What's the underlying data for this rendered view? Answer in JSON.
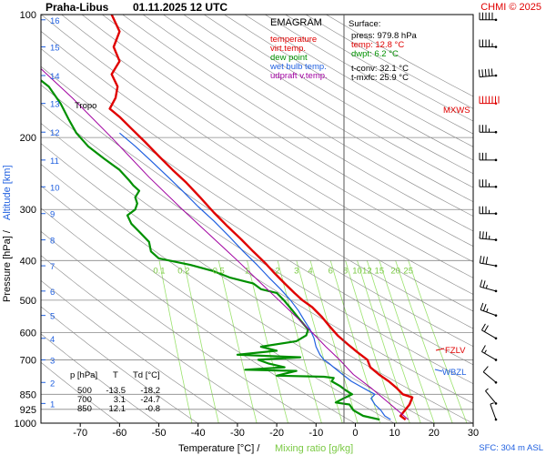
{
  "header": {
    "station": "Praha-Libus",
    "datetime": "01.11.2025 12 UTC",
    "copyright": "CHMI © 2025"
  },
  "legend": {
    "title": "EMAGRAM",
    "items": [
      {
        "label": "temperature",
        "color": "#e00000"
      },
      {
        "label": "virt.temp.",
        "color": "#e00000"
      },
      {
        "label": "dew point",
        "color": "#009000"
      },
      {
        "label": "wet bulb temp.",
        "color": "#2060e0"
      },
      {
        "label": "udpraft v.temp.",
        "color": "#a000a0"
      }
    ]
  },
  "surface": {
    "title": "Surface:",
    "press": "press: 979.8 hPa",
    "temp": "temp: 12.8 °C",
    "dwpt": "dwpt: 6.2 °C",
    "tconv": "t-conv: 32.1 °C",
    "tmxfc": "t-mxfc: 25.9 °C"
  },
  "levels_table": {
    "headers": [
      "p [hPa]",
      "T",
      "Td [°C]"
    ],
    "rows": [
      [
        "500",
        "-13.5",
        "-18.2"
      ],
      [
        "700",
        "3.1",
        "-24.7"
      ],
      [
        "850",
        "12.1",
        "-0.8"
      ]
    ]
  },
  "annotations": {
    "tropo": "Tropo",
    "mxws": "MXWS",
    "fzlv": "FZLV",
    "wbzl": "WBZL",
    "sfc": "SFC: 304 m ASL"
  },
  "axis_labels": {
    "y": "Pressure [hPa]  /",
    "y_alt": "Altitude [km]",
    "x": "Temperature [°C]  /",
    "x_mix": "Mixing ratio [g/kg]"
  },
  "chart_data": {
    "type": "line",
    "title": "Praha-Libus 01.11.2025 12 UTC",
    "xlabel": "Temperature [°C]",
    "ylabel": "Pressure [hPa]",
    "xlim": [
      -80,
      30
    ],
    "ylim": [
      1000,
      100
    ],
    "x_ticks": [
      -70,
      -60,
      -50,
      -40,
      -30,
      -20,
      -10,
      0,
      10,
      20,
      30
    ],
    "p_ticks": [
      100,
      200,
      300,
      400,
      500,
      600,
      700,
      850,
      925,
      1000
    ],
    "p_tick_labels": [
      "100",
      "200",
      "300",
      "400",
      "500",
      "600",
      "700",
      "850",
      "925",
      "1000"
    ],
    "altitude_ticks": [
      {
        "km": 1,
        "p": 895
      },
      {
        "km": 2,
        "p": 795
      },
      {
        "km": 3,
        "p": 700
      },
      {
        "km": 4,
        "p": 620
      },
      {
        "km": 5,
        "p": 545
      },
      {
        "km": 6,
        "p": 475
      },
      {
        "km": 7,
        "p": 412
      },
      {
        "km": 8,
        "p": 356
      },
      {
        "km": 9,
        "p": 307
      },
      {
        "km": 10,
        "p": 264
      },
      {
        "km": 11,
        "p": 227
      },
      {
        "km": 12,
        "p": 194
      },
      {
        "km": 13,
        "p": 165
      },
      {
        "km": 14,
        "p": 141
      },
      {
        "km": 15,
        "p": 120
      },
      {
        "km": 16,
        "p": 103
      }
    ],
    "mixing_ratio_labels": [
      "0.1",
      "0.2",
      "0.5",
      "1",
      "2",
      "3",
      "4",
      "6",
      "8",
      "10",
      "12",
      "15",
      "20",
      "25"
    ],
    "series": [
      {
        "name": "temperature",
        "color": "#e00000",
        "width": 2.4,
        "points": [
          [
            12.8,
            980
          ],
          [
            11.5,
            960
          ],
          [
            13.8,
            900
          ],
          [
            14.5,
            865
          ],
          [
            12.1,
            850
          ],
          [
            10.5,
            820
          ],
          [
            8.5,
            790
          ],
          [
            6.0,
            760
          ],
          [
            3.8,
            730
          ],
          [
            3.1,
            700
          ],
          [
            0.5,
            670
          ],
          [
            -2.0,
            640
          ],
          [
            -4.5,
            610
          ],
          [
            -6.5,
            580
          ],
          [
            -8.5,
            550
          ],
          [
            -11.0,
            520
          ],
          [
            -13.5,
            500
          ],
          [
            -15.5,
            480
          ],
          [
            -18.0,
            455
          ],
          [
            -20.5,
            430
          ],
          [
            -23.0,
            405
          ],
          [
            -26.0,
            380
          ],
          [
            -29.0,
            355
          ],
          [
            -32.5,
            330
          ],
          [
            -36.0,
            305
          ],
          [
            -39.5,
            280
          ],
          [
            -43.0,
            258
          ],
          [
            -46.5,
            240
          ],
          [
            -50.0,
            222
          ],
          [
            -53.5,
            205
          ],
          [
            -57.0,
            190
          ],
          [
            -60.0,
            178
          ],
          [
            -62.5,
            170
          ],
          [
            -61.0,
            160
          ],
          [
            -60.5,
            150
          ],
          [
            -62.0,
            140
          ],
          [
            -60.0,
            130
          ],
          [
            -61.5,
            120
          ],
          [
            -60.0,
            110
          ],
          [
            -62.0,
            100
          ]
        ]
      },
      {
        "name": "dew point",
        "color": "#009000",
        "width": 2.2,
        "points": [
          [
            6.2,
            980
          ],
          [
            2.0,
            960
          ],
          [
            -0.5,
            930
          ],
          [
            -1.5,
            900
          ],
          [
            -5.0,
            890
          ],
          [
            -3.0,
            870
          ],
          [
            -0.8,
            850
          ],
          [
            -2.5,
            830
          ],
          [
            -4.0,
            810
          ],
          [
            -6.0,
            790
          ],
          [
            -5.5,
            775
          ],
          [
            -8.0,
            770
          ],
          [
            -20.0,
            765
          ],
          [
            -15.0,
            745
          ],
          [
            -28.0,
            740
          ],
          [
            -18.0,
            730
          ],
          [
            -22.0,
            715
          ],
          [
            -24.7,
            700
          ],
          [
            -14.0,
            690
          ],
          [
            -30.0,
            680
          ],
          [
            -20.0,
            665
          ],
          [
            -24.0,
            650
          ],
          [
            -15.0,
            630
          ],
          [
            -12.5,
            610
          ],
          [
            -12.0,
            590
          ],
          [
            -14.0,
            560
          ],
          [
            -16.0,
            530
          ],
          [
            -18.2,
            500
          ],
          [
            -20.0,
            480
          ],
          [
            -24.0,
            470
          ],
          [
            -26.0,
            455
          ],
          [
            -28.0,
            450
          ],
          [
            -32.0,
            440
          ],
          [
            -36.0,
            425
          ],
          [
            -42.0,
            410
          ],
          [
            -50.0,
            395
          ],
          [
            -52.0,
            380
          ],
          [
            -52.5,
            360
          ],
          [
            -55.0,
            340
          ],
          [
            -57.0,
            325
          ],
          [
            -58.0,
            310
          ],
          [
            -56.0,
            300
          ],
          [
            -55.5,
            290
          ],
          [
            -56.0,
            280
          ],
          [
            -55.0,
            270
          ],
          [
            -56.5,
            262
          ],
          [
            -57.5,
            255
          ],
          [
            -60.0,
            240
          ],
          [
            -64.0,
            225
          ],
          [
            -68.0,
            210
          ],
          [
            -71.0,
            195
          ],
          [
            -73.0,
            180
          ],
          [
            -75.0,
            165
          ],
          [
            -78.0,
            150
          ],
          [
            -82.0,
            140
          ]
        ]
      },
      {
        "name": "wet bulb temp.",
        "color": "#2060e0",
        "width": 1.2,
        "points": [
          [
            9.0,
            980
          ],
          [
            7.5,
            960
          ],
          [
            6.5,
            930
          ],
          [
            5.0,
            900
          ],
          [
            4.0,
            870
          ],
          [
            5.0,
            850
          ],
          [
            3.0,
            830
          ],
          [
            1.0,
            810
          ],
          [
            -1.0,
            790
          ],
          [
            -2.5,
            770
          ],
          [
            -4.0,
            750
          ],
          [
            -5.5,
            730
          ],
          [
            -7.0,
            710
          ],
          [
            -8.0,
            700
          ],
          [
            -9.0,
            680
          ],
          [
            -10.0,
            650
          ],
          [
            -10.5,
            620
          ],
          [
            -11.5,
            590
          ],
          [
            -13.0,
            560
          ],
          [
            -14.5,
            530
          ],
          [
            -16.5,
            500
          ],
          [
            -19.0,
            470
          ],
          [
            -22.0,
            440
          ],
          [
            -25.0,
            410
          ],
          [
            -28.5,
            380
          ],
          [
            -32.0,
            350
          ],
          [
            -36.0,
            320
          ],
          [
            -40.0,
            295
          ],
          [
            -44.0,
            270
          ],
          [
            -48.0,
            248
          ],
          [
            -52.0,
            228
          ],
          [
            -56.0,
            210
          ],
          [
            -60.0,
            195
          ]
        ]
      },
      {
        "name": "udpraft v.temp.",
        "color": "#a000a0",
        "width": 1.0,
        "points": [
          [
            13.5,
            980
          ],
          [
            9.0,
            900
          ],
          [
            4.0,
            820
          ],
          [
            -0.5,
            760
          ],
          [
            -4.0,
            700
          ],
          [
            -7.5,
            650
          ],
          [
            -11.0,
            600
          ],
          [
            -15.0,
            550
          ],
          [
            -19.5,
            500
          ],
          [
            -24.5,
            450
          ],
          [
            -30.0,
            400
          ],
          [
            -36.5,
            350
          ],
          [
            -44.0,
            300
          ],
          [
            -52.5,
            250
          ],
          [
            -62.0,
            200
          ],
          [
            -72.0,
            160
          ],
          [
            -84.0,
            125
          ]
        ]
      }
    ],
    "wind_barbs": [
      {
        "p": 103,
        "dir": 270,
        "speed": 50
      },
      {
        "p": 120,
        "dir": 270,
        "speed": 45
      },
      {
        "p": 141,
        "dir": 265,
        "speed": 50
      },
      {
        "p": 165,
        "dir": 270,
        "speed": 70
      },
      {
        "p": 194,
        "dir": 270,
        "speed": 35
      },
      {
        "p": 227,
        "dir": 270,
        "speed": 30
      },
      {
        "p": 264,
        "dir": 270,
        "speed": 35
      },
      {
        "p": 307,
        "dir": 270,
        "speed": 35
      },
      {
        "p": 356,
        "dir": 275,
        "speed": 35
      },
      {
        "p": 412,
        "dir": 280,
        "speed": 30
      },
      {
        "p": 475,
        "dir": 285,
        "speed": 25
      },
      {
        "p": 545,
        "dir": 290,
        "speed": 25
      },
      {
        "p": 620,
        "dir": 300,
        "speed": 20
      },
      {
        "p": 700,
        "dir": 300,
        "speed": 15
      },
      {
        "p": 795,
        "dir": 310,
        "speed": 10
      },
      {
        "p": 895,
        "dir": 320,
        "speed": 5
      },
      {
        "p": 980,
        "dir": 340,
        "speed": 5
      }
    ]
  }
}
